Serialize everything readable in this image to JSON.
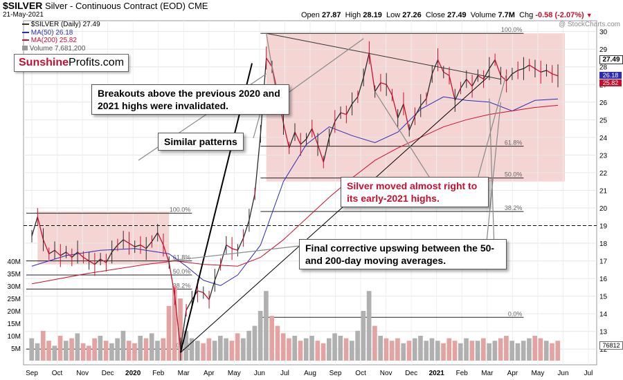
{
  "header": {
    "symbol": "$SILVER",
    "description": "Silver - Continuous Contract (EOD)",
    "exchange": "CME",
    "date": "21-May-2021",
    "open_label": "Open",
    "open": "27.87",
    "high_label": "High",
    "high": "28.19",
    "low_label": "Low",
    "low": "27.26",
    "close_label": "Close",
    "close": "27.49",
    "volume_label": "Volume",
    "volume": "7.7M",
    "chg_label": "Chg",
    "chg": "-0.58 (-2.07%)",
    "chg_color": "#c8102e"
  },
  "legend": {
    "price": "$SILVER (Daily) 27.49",
    "ma50": "MA(50) 26.18",
    "ma200": "MA(200) 25.82",
    "volume": "Volume 7,681,200"
  },
  "watermark": "@ StockCharts.com",
  "logo": {
    "part1": "Sunshine",
    "part2": "Profits.com"
  },
  "callouts": {
    "breakouts": "Breakouts above the previous 2020 and 2021 highs were invalidated.",
    "similar": "Similar patterns",
    "silver_moved": "Silver moved almost right to its early-2021 highs.",
    "final": "Final corrective upswing between the 50- and 200-day moving averages."
  },
  "right_tags": {
    "price": "27.49",
    "ma50": "26.18",
    "ma200": "25.82",
    "volume": "76812"
  },
  "colors": {
    "price_up": "#2a2a2a",
    "price_down": "#c8102e",
    "ma50": "#2b2bb8",
    "ma200": "#c8102e",
    "box": "#f2c6c6",
    "callout_red": "#c8102e"
  },
  "chart_data": {
    "type": "line",
    "title": "$SILVER Silver - Continuous Contract (EOD) CME",
    "x_ticks": [
      "Sep",
      "Oct",
      "Nov",
      "Dec",
      "2020",
      "Feb",
      "Mar",
      "Apr",
      "May",
      "Jun",
      "Jul",
      "Aug",
      "Sep",
      "Oct",
      "Nov",
      "Dec",
      "2021",
      "Feb",
      "Mar",
      "Apr",
      "May",
      "Jun",
      "Jul"
    ],
    "y_ticks": [
      12,
      13,
      14,
      15,
      16,
      17,
      18,
      19,
      20,
      21,
      22,
      23,
      24,
      25,
      26,
      27,
      28,
      29,
      30
    ],
    "ylim": [
      11.5,
      30.3
    ],
    "volume_ticks": [
      "5M",
      "10M",
      "15M",
      "20M",
      "25M",
      "30M",
      "35M",
      "40M"
    ],
    "fib_left": [
      {
        "label": "100.0%",
        "value": 19.7
      },
      {
        "label": "61.8%",
        "value": 17.0
      },
      {
        "label": "50.0%",
        "value": 16.2
      },
      {
        "label": "38.2%",
        "value": 15.4
      },
      {
        "label": "0.0%",
        "value": 12.0
      }
    ],
    "fib_right": [
      {
        "label": "100.0%",
        "value": 29.9
      },
      {
        "label": "61.8%",
        "value": 23.5
      },
      {
        "label": "50.0%",
        "value": 21.7
      },
      {
        "label": "38.2%",
        "value": 19.8
      },
      {
        "label": "0.0%",
        "value": 13.8
      }
    ],
    "reference_line": 19.0,
    "series": [
      {
        "name": "$SILVER",
        "x": [
          0,
          1,
          2,
          3,
          4,
          5,
          6,
          7,
          8,
          9,
          10,
          11,
          12,
          13,
          14,
          15,
          16,
          17,
          18,
          19,
          20,
          21,
          22,
          23,
          24,
          25,
          26,
          27,
          28,
          29,
          30,
          31,
          32,
          33,
          34,
          35,
          36,
          37,
          38,
          39,
          40,
          41,
          42,
          43,
          44,
          45,
          46,
          47,
          48,
          49,
          50,
          51,
          52,
          53,
          54,
          55,
          56,
          57,
          58,
          59,
          60,
          61,
          62,
          63,
          64,
          65,
          66,
          67,
          68,
          69,
          70,
          71,
          72,
          73,
          74,
          75,
          76,
          77,
          78,
          79,
          80,
          81,
          82,
          83,
          84,
          85,
          86,
          87,
          88,
          89,
          90,
          91,
          92
        ],
        "values": [
          18.4,
          19.5,
          18.2,
          17.4,
          17.6,
          17.3,
          17.5,
          17.2,
          17.5,
          17.2,
          17.0,
          16.8,
          17.1,
          16.9,
          17.5,
          17.9,
          18.2,
          18.0,
          17.8,
          17.9,
          17.7,
          18.1,
          18.6,
          17.9,
          16.9,
          15.0,
          12.0,
          14.2,
          14.8,
          15.3,
          15.2,
          14.8,
          15.9,
          16.8,
          17.9,
          17.7,
          17.6,
          18.3,
          19.3,
          20.8,
          24.2,
          28.5,
          28.0,
          26.5,
          24.8,
          23.4,
          24.3,
          23.6,
          23.9,
          24.5,
          23.6,
          22.6,
          24.0,
          24.9,
          25.4,
          25.3,
          25.9,
          26.3,
          27.4,
          28.8,
          26.6,
          27.1,
          27.0,
          26.4,
          25.1,
          25.9,
          24.4,
          25.2,
          25.8,
          26.2,
          27.6,
          28.4,
          27.7,
          27.5,
          26.1,
          26.8,
          27.3,
          26.9,
          27.5,
          27.3,
          27.9,
          28.4,
          27.5,
          27.2,
          27.6,
          27.8,
          27.9,
          28.1,
          27.9,
          27.7,
          27.8,
          27.6,
          27.49
        ]
      },
      {
        "name": "MA(50)",
        "x": [
          0,
          6,
          12,
          18,
          24,
          27,
          30,
          33,
          36,
          40,
          44,
          48,
          52,
          56,
          60,
          64,
          68,
          72,
          76,
          80,
          84,
          88,
          92
        ],
        "values": [
          16.7,
          17.3,
          17.6,
          17.7,
          17.4,
          16.7,
          15.9,
          15.6,
          16.2,
          17.9,
          21.5,
          23.6,
          24.6,
          24.1,
          23.7,
          24.3,
          25.6,
          26.3,
          26.1,
          26.0,
          25.5,
          26.1,
          26.18
        ]
      },
      {
        "name": "MA(200)",
        "x": [
          0,
          10,
          20,
          25,
          30,
          36,
          40,
          44,
          48,
          52,
          56,
          60,
          64,
          68,
          72,
          76,
          80,
          84,
          88,
          92
        ],
        "values": [
          15.7,
          16.3,
          16.8,
          17.0,
          16.8,
          16.7,
          17.2,
          18.2,
          19.4,
          20.6,
          21.7,
          22.7,
          23.4,
          24.0,
          24.6,
          25.0,
          25.3,
          25.5,
          25.7,
          25.82
        ]
      }
    ],
    "volume_bars_millions": [
      9,
      7,
      12,
      8,
      6,
      10,
      8,
      9,
      11,
      7,
      6,
      9,
      10,
      8,
      7,
      9,
      12,
      8,
      7,
      10,
      9,
      11,
      8,
      9,
      22,
      30,
      25,
      12,
      9,
      8,
      7,
      9,
      8,
      10,
      9,
      8,
      11,
      9,
      12,
      14,
      20,
      28,
      18,
      14,
      11,
      9,
      10,
      8,
      9,
      10,
      8,
      7,
      9,
      11,
      10,
      9,
      8,
      12,
      20,
      28,
      14,
      10,
      9,
      8,
      9,
      7,
      8,
      9,
      10,
      8,
      9,
      8,
      7,
      9,
      8,
      7,
      9,
      8,
      8,
      9,
      7,
      8,
      9,
      10,
      8,
      7,
      8,
      9,
      10,
      9,
      8,
      7,
      8
    ]
  }
}
